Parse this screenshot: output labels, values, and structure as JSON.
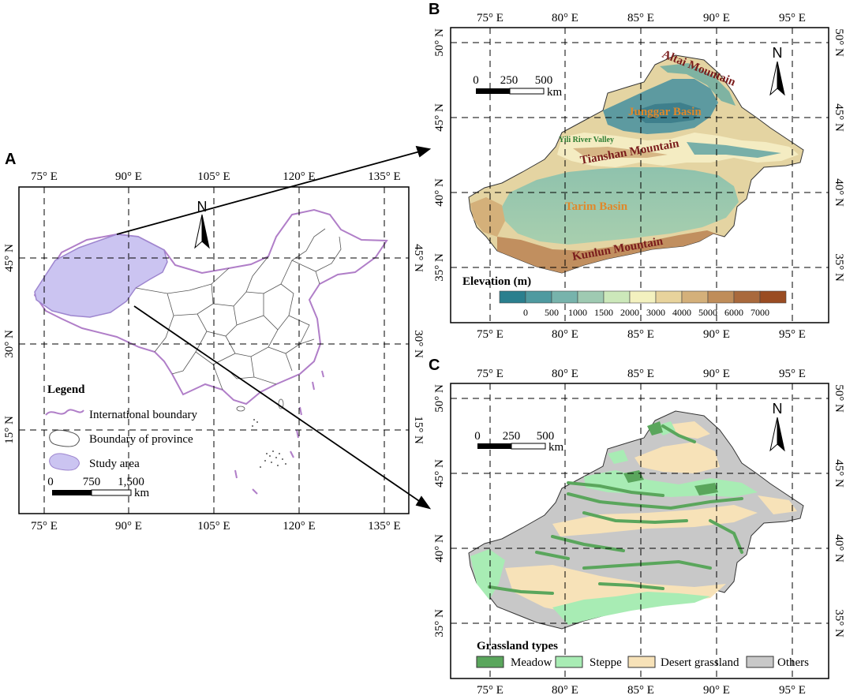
{
  "panels": {
    "a": {
      "letter": "A",
      "lon_labels": [
        "75° E",
        "90° E",
        "105° E",
        "120° E",
        "135° E"
      ],
      "lat_labels": [
        "45° N",
        "30° N",
        "15° N"
      ],
      "legend": {
        "title": "Legend",
        "items": [
          "International boundary",
          "Boundary of province",
          "Study area"
        ],
        "scale": [
          "0",
          "750",
          "1,500"
        ],
        "unit": "km"
      },
      "north": "N"
    },
    "b": {
      "letter": "B",
      "lon_labels": [
        "75° E",
        "80° E",
        "85° E",
        "90° E",
        "95° E"
      ],
      "lat_labels": [
        "50° N",
        "45° N",
        "40° N",
        "35° N"
      ],
      "scale": [
        "0",
        "250",
        "500"
      ],
      "unit": "km",
      "north": "N",
      "features": {
        "altai": "Altai Mountain",
        "junggar": "Junggar Basin",
        "yili": "Yili River Valley",
        "tianshan": "Tianshan Mountain",
        "tarim": "Tarim Basin",
        "kunlun": "Kunlun Mountain"
      },
      "elevation": {
        "title": "Elevation (m)",
        "labels": [
          "0",
          "500",
          "1000",
          "1500",
          "2000",
          "3000",
          "4000",
          "5000",
          "6000",
          "7000"
        ],
        "colors": [
          "#2a7f8e",
          "#4f9aa0",
          "#77b3ac",
          "#9fcab2",
          "#cce8ba",
          "#f3f1bf",
          "#e8d39c",
          "#d4b07a",
          "#bf8d5a",
          "#a9693c",
          "#9a4c22"
        ]
      }
    },
    "c": {
      "letter": "C",
      "lon_labels": [
        "75° E",
        "80° E",
        "85° E",
        "90° E",
        "95° E"
      ],
      "lat_labels": [
        "50° N",
        "45° N",
        "40° N",
        "35° N"
      ],
      "scale": [
        "0",
        "250",
        "500"
      ],
      "unit": "km",
      "north": "N",
      "legend": {
        "title": "Grassland types",
        "items": [
          {
            "label": "Meadow",
            "color": "#5aa65c"
          },
          {
            "label": "Steppe",
            "color": "#a8ecb4"
          },
          {
            "label": "Desert grassland",
            "color": "#f7e2b8"
          },
          {
            "label": "Others",
            "color": "#c8c8c8"
          }
        ]
      }
    }
  }
}
